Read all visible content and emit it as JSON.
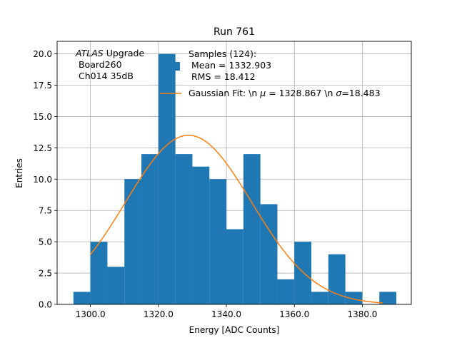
{
  "chart_data": {
    "type": "bar",
    "title": "Run 761",
    "xlabel": "Energy [ADC Counts]",
    "ylabel": "Entries",
    "xlim": [
      1290.2,
      1394.4
    ],
    "ylim": [
      0,
      21
    ],
    "x_ticks": [
      1300,
      1320,
      1340,
      1360,
      1380
    ],
    "x_tick_labels": [
      "1300.0",
      "1320.0",
      "1340.0",
      "1360.0",
      "1380.0"
    ],
    "y_ticks": [
      0,
      2.5,
      5,
      7.5,
      10,
      12.5,
      15,
      17.5,
      20
    ],
    "y_tick_labels": [
      "0.0",
      "2.5",
      "5.0",
      "7.5",
      "10.0",
      "12.5",
      "15.0",
      "17.5",
      "20.0"
    ],
    "grid": true,
    "histogram": {
      "bin_edges": [
        1295.0,
        1300.0,
        1305.0,
        1310.0,
        1315.0,
        1320.0,
        1325.0,
        1330.0,
        1335.0,
        1340.0,
        1345.0,
        1350.0,
        1355.0,
        1360.0,
        1365.0,
        1370.0,
        1375.0,
        1380.0,
        1385.0,
        1390.0
      ],
      "counts": [
        1,
        5,
        3,
        10,
        12,
        20,
        12,
        11,
        10,
        6,
        12,
        8,
        2,
        5,
        1,
        4,
        1,
        0,
        1
      ],
      "color": "#1f77b4"
    },
    "fit_curve": {
      "type": "gaussian",
      "mu": 1328.867,
      "sigma": 18.483,
      "amplitude": 13.5,
      "x_range": [
        1300,
        1386
      ],
      "color": "#ff7f0e"
    },
    "legend": {
      "placement": "top-right",
      "samples_lines": [
        "Samples (124):",
        " Mean = 1332.903",
        " RMS = 18.412"
      ],
      "fit_prefix": "Gaussian Fit: \\n ",
      "fit_mu_symbol": "μ",
      "fit_mid": " = 1328.867 \\n ",
      "fit_sigma_symbol": "σ",
      "fit_suffix": "=18.483"
    },
    "annotation": {
      "experiment": "ATLAS",
      "line1_rest": " Upgrade",
      "line2": " Board260",
      "line3": " Ch014 35dB"
    }
  }
}
